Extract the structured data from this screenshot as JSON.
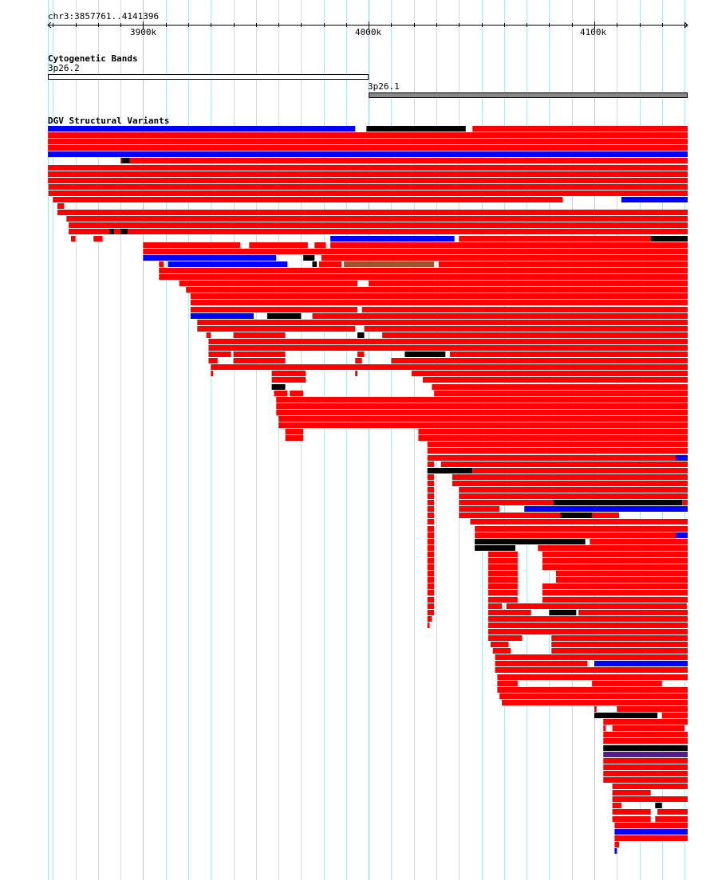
{
  "ruler": {
    "location": "chr3:3857761..4141396",
    "start_kb": 3857.761,
    "end_kb": 4141.396,
    "labels": [
      {
        "kb": 3900,
        "text": "3900k"
      },
      {
        "kb": 4000,
        "text": "4000k"
      },
      {
        "kb": 4100,
        "text": "4100k"
      }
    ]
  },
  "cytobands": {
    "title": "Cytogenetic Bands",
    "bands": [
      {
        "name": "3p26.2",
        "start": 3857.761,
        "end": 4000,
        "color": "#ffffff"
      },
      {
        "name": "3p26.1",
        "start": 4000,
        "end": 4141.396,
        "color": "#888888"
      }
    ]
  },
  "variants": {
    "title": "DGV Structural Variants",
    "colors": {
      "r": "#ff0000",
      "b": "#0000ff",
      "k": "#000000",
      "n": "#a0522d",
      "p": "#551a8b"
    },
    "rows": [
      [
        [
          3857.8,
          3994,
          "b"
        ],
        [
          3999,
          4043,
          "k"
        ],
        [
          4046,
          4142,
          "r"
        ]
      ],
      [
        [
          3857.8,
          4142,
          "r"
        ]
      ],
      [
        [
          3857.8,
          4142,
          "r"
        ]
      ],
      [
        [
          3857.8,
          4142,
          "r"
        ]
      ],
      [
        [
          3857.8,
          4142,
          "b"
        ]
      ],
      [
        [
          3890,
          4142,
          "r"
        ],
        [
          3890.5,
          3894,
          "k"
        ]
      ],
      [
        [
          3857.8,
          4142,
          "r"
        ]
      ],
      [
        [
          3857.8,
          4142,
          "r"
        ]
      ],
      [
        [
          3857.8,
          4142,
          "r"
        ]
      ],
      [
        [
          3858,
          4142,
          "r"
        ]
      ],
      [
        [
          3858,
          4142,
          "r"
        ]
      ],
      [
        [
          3860,
          4086,
          "r"
        ],
        [
          4112,
          4142,
          "b"
        ]
      ],
      [
        [
          3862,
          3865,
          "r"
        ]
      ],
      [
        [
          3862,
          4142,
          "r"
        ]
      ],
      [
        [
          3866,
          4142,
          "r"
        ]
      ],
      [
        [
          3867,
          4142,
          "r"
        ]
      ],
      [
        [
          3867,
          4142,
          "r"
        ],
        [
          3885,
          3887,
          "k"
        ],
        [
          3890,
          3893,
          "k"
        ]
      ],
      [
        [
          3868,
          3870,
          "r"
        ],
        [
          3878,
          3882,
          "r"
        ],
        [
          3983,
          4038,
          "b"
        ],
        [
          4040,
          4125,
          "r"
        ],
        [
          4125,
          4142,
          "k"
        ]
      ],
      [
        [
          3900,
          3943,
          "r"
        ],
        [
          3947,
          3973,
          "r"
        ],
        [
          3976,
          3981,
          "r"
        ],
        [
          3983,
          4142,
          "r"
        ]
      ],
      [
        [
          3900,
          4142,
          "r"
        ]
      ],
      [
        [
          3900,
          3959,
          "b"
        ],
        [
          3971,
          3976,
          "k"
        ],
        [
          3979,
          4142,
          "r"
        ]
      ],
      [
        [
          3907,
          3909,
          "r"
        ],
        [
          3911,
          3964,
          "b"
        ],
        [
          3975,
          3977,
          "k"
        ],
        [
          3978,
          3988,
          "r"
        ],
        [
          3989,
          4029,
          "n"
        ],
        [
          4031,
          4142,
          "r"
        ]
      ],
      [
        [
          3907,
          4142,
          "r"
        ]
      ],
      [
        [
          3907,
          4142,
          "r"
        ]
      ],
      [
        [
          3916,
          3995,
          "r"
        ],
        [
          4000,
          4142,
          "r"
        ]
      ],
      [
        [
          3919,
          4142,
          "r"
        ]
      ],
      [
        [
          3921,
          4142,
          "r"
        ]
      ],
      [
        [
          3921,
          4142,
          "r"
        ]
      ],
      [
        [
          3921,
          3995,
          "r"
        ],
        [
          3997,
          4142,
          "r"
        ]
      ],
      [
        [
          3921,
          3949,
          "b"
        ],
        [
          3955,
          3970,
          "k"
        ],
        [
          3975,
          4142,
          "r"
        ]
      ],
      [
        [
          3924,
          4142,
          "r"
        ]
      ],
      [
        [
          3924,
          3994,
          "r"
        ],
        [
          3998,
          4142,
          "r"
        ]
      ],
      [
        [
          3928,
          3930,
          "r"
        ],
        [
          3940,
          3963,
          "r"
        ],
        [
          3995,
          3998,
          "k"
        ],
        [
          4006,
          4142,
          "r"
        ]
      ],
      [
        [
          3929,
          4142,
          "r"
        ]
      ],
      [
        [
          3929,
          4142,
          "r"
        ]
      ],
      [
        [
          3929,
          3939,
          "r"
        ],
        [
          3940,
          3963,
          "r"
        ],
        [
          3995,
          3998,
          "r"
        ],
        [
          4016,
          4034,
          "k"
        ],
        [
          4036,
          4142,
          "r"
        ]
      ],
      [
        [
          3929,
          3933,
          "r"
        ],
        [
          3940,
          3963,
          "r"
        ],
        [
          3994,
          3997,
          "r"
        ],
        [
          4010,
          4142,
          "r"
        ]
      ],
      [
        [
          3930,
          4142,
          "r"
        ]
      ],
      [
        [
          3930,
          3931,
          "r"
        ],
        [
          3957,
          3972,
          "r"
        ],
        [
          3994,
          3995,
          "r"
        ],
        [
          4019,
          4142,
          "r"
        ]
      ],
      [
        [
          3957,
          3972,
          "r"
        ],
        [
          4024,
          4142,
          "r"
        ]
      ],
      [
        [
          3957,
          3963,
          "k"
        ],
        [
          4028,
          4142,
          "r"
        ]
      ],
      [
        [
          3958,
          3964,
          "r"
        ],
        [
          3965,
          3971,
          "r"
        ],
        [
          4029,
          4142,
          "r"
        ]
      ],
      [
        [
          3959,
          4142,
          "r"
        ]
      ],
      [
        [
          3959,
          4142,
          "r"
        ]
      ],
      [
        [
          3959,
          4142,
          "r"
        ]
      ],
      [
        [
          3960,
          4142,
          "r"
        ]
      ],
      [
        [
          3960,
          4142,
          "r"
        ]
      ],
      [
        [
          3963,
          3971,
          "r"
        ],
        [
          4022,
          4142,
          "r"
        ]
      ],
      [
        [
          3963,
          3971,
          "r"
        ],
        [
          4022,
          4142,
          "r"
        ]
      ],
      [
        [
          4026,
          4142,
          "r"
        ]
      ],
      [
        [
          4026,
          4142,
          "r"
        ]
      ],
      [
        [
          4026,
          4142,
          "r"
        ],
        [
          4136,
          4142,
          "b"
        ]
      ],
      [
        [
          4026,
          4029,
          "r"
        ],
        [
          4032,
          4142,
          "r"
        ]
      ],
      [
        [
          4026,
          4046,
          "k"
        ],
        [
          4046,
          4142,
          "r"
        ]
      ],
      [
        [
          4026,
          4029,
          "r"
        ],
        [
          4037,
          4142,
          "r"
        ]
      ],
      [
        [
          4026,
          4029,
          "r"
        ],
        [
          4037,
          4142,
          "r"
        ]
      ],
      [
        [
          4026,
          4029,
          "r"
        ],
        [
          4040,
          4142,
          "r"
        ]
      ],
      [
        [
          4026,
          4029,
          "r"
        ],
        [
          4040,
          4142,
          "r"
        ]
      ],
      [
        [
          4026,
          4029,
          "r"
        ],
        [
          4040,
          4082,
          "r"
        ],
        [
          4082,
          4139,
          "k"
        ],
        [
          4139,
          4142,
          "r"
        ]
      ],
      [
        [
          4026,
          4029,
          "r"
        ],
        [
          4040,
          4058,
          "r"
        ],
        [
          4069,
          4142,
          "b"
        ]
      ],
      [
        [
          4026,
          4029,
          "r"
        ],
        [
          4040,
          4111,
          "r"
        ],
        [
          4085,
          4099,
          "k"
        ]
      ],
      [
        [
          4026,
          4029,
          "r"
        ],
        [
          4045,
          4142,
          "r"
        ]
      ],
      [
        [
          4026,
          4029,
          "r"
        ],
        [
          4047,
          4142,
          "r"
        ]
      ],
      [
        [
          4026,
          4029,
          "r"
        ],
        [
          4047,
          4142,
          "r"
        ],
        [
          4136,
          4142,
          "b"
        ]
      ],
      [
        [
          4026,
          4029,
          "r"
        ],
        [
          4047,
          4096,
          "k"
        ],
        [
          4098,
          4142,
          "r"
        ]
      ],
      [
        [
          4026,
          4029,
          "r"
        ],
        [
          4047,
          4065,
          "k"
        ],
        [
          4075,
          4142,
          "r"
        ]
      ],
      [
        [
          4026,
          4029,
          "r"
        ],
        [
          4053,
          4066,
          "r"
        ],
        [
          4077,
          4142,
          "r"
        ]
      ],
      [
        [
          4026,
          4029,
          "r"
        ],
        [
          4053,
          4066,
          "r"
        ],
        [
          4077,
          4142,
          "r"
        ]
      ],
      [
        [
          4026,
          4029,
          "r"
        ],
        [
          4053,
          4066,
          "r"
        ],
        [
          4077,
          4142,
          "r"
        ]
      ],
      [
        [
          4026,
          4029,
          "r"
        ],
        [
          4053,
          4066,
          "r"
        ],
        [
          4083,
          4142,
          "r"
        ]
      ],
      [
        [
          4026,
          4029,
          "r"
        ],
        [
          4053,
          4066,
          "r"
        ],
        [
          4083,
          4142,
          "r"
        ]
      ],
      [
        [
          4026,
          4029,
          "r"
        ],
        [
          4053,
          4066,
          "r"
        ],
        [
          4077,
          4142,
          "r"
        ]
      ],
      [
        [
          4026,
          4029,
          "r"
        ],
        [
          4053,
          4066,
          "r"
        ],
        [
          4077,
          4142,
          "r"
        ]
      ],
      [
        [
          4026,
          4029,
          "r"
        ],
        [
          4053,
          4066,
          "r"
        ],
        [
          4077,
          4142,
          "r"
        ]
      ],
      [
        [
          4026,
          4029,
          "r"
        ],
        [
          4053,
          4059,
          "r"
        ],
        [
          4061,
          4141,
          "r"
        ]
      ],
      [
        [
          4026,
          4029,
          "r"
        ],
        [
          4053,
          4072,
          "r"
        ],
        [
          4080,
          4092,
          "k"
        ],
        [
          4093,
          4142,
          "r"
        ]
      ],
      [
        [
          4026,
          4028,
          "r"
        ],
        [
          4053,
          4142,
          "r"
        ]
      ],
      [
        [
          4026,
          4027,
          "r"
        ],
        [
          4053,
          4142,
          "r"
        ]
      ],
      [
        [
          4053,
          4142,
          "r"
        ]
      ],
      [
        [
          4053,
          4068,
          "r"
        ],
        [
          4081,
          4142,
          "r"
        ]
      ],
      [
        [
          4054,
          4062,
          "r"
        ],
        [
          4081,
          4142,
          "r"
        ]
      ],
      [
        [
          4055,
          4063,
          "r"
        ],
        [
          4081,
          4142,
          "r"
        ]
      ],
      [
        [
          4056,
          4142,
          "r"
        ]
      ],
      [
        [
          4056,
          4097,
          "r"
        ],
        [
          4100,
          4142,
          "b"
        ]
      ],
      [
        [
          4056,
          4142,
          "r"
        ]
      ],
      [
        [
          4057,
          4142,
          "r"
        ]
      ],
      [
        [
          4057,
          4066,
          "r"
        ],
        [
          4099,
          4130,
          "r"
        ]
      ],
      [
        [
          4057,
          4142,
          "r"
        ]
      ],
      [
        [
          4058,
          4142,
          "r"
        ]
      ],
      [
        [
          4059,
          4142,
          "r"
        ]
      ],
      [
        [
          4100,
          4101,
          "r"
        ],
        [
          4110,
          4142,
          "r"
        ]
      ],
      [
        [
          4100,
          4128,
          "k"
        ],
        [
          4130,
          4142,
          "r"
        ]
      ],
      [
        [
          4104,
          4142,
          "r"
        ]
      ],
      [
        [
          4104,
          4105,
          "r"
        ],
        [
          4108,
          4140,
          "r"
        ]
      ],
      [
        [
          4104,
          4142,
          "r"
        ]
      ],
      [
        [
          4104,
          4142,
          "r"
        ]
      ],
      [
        [
          4104,
          4142,
          "k"
        ]
      ],
      [
        [
          4104,
          4142,
          "p"
        ]
      ],
      [
        [
          4104,
          4142,
          "r"
        ]
      ],
      [
        [
          4104,
          4142,
          "r"
        ]
      ],
      [
        [
          4104,
          4142,
          "r"
        ]
      ],
      [
        [
          4104,
          4142,
          "r"
        ]
      ],
      [
        [
          4108,
          4142,
          "r"
        ]
      ],
      [
        [
          4108,
          4125,
          "r"
        ]
      ],
      [
        [
          4108,
          4142,
          "r"
        ]
      ],
      [
        [
          4108,
          4112,
          "r"
        ],
        [
          4127,
          4130,
          "k"
        ]
      ],
      [
        [
          4108,
          4125,
          "r"
        ],
        [
          4128,
          4142,
          "r"
        ]
      ],
      [
        [
          4108,
          4125,
          "r"
        ],
        [
          4127,
          4142,
          "r"
        ]
      ],
      [
        [
          4109,
          4142,
          "r"
        ]
      ],
      [
        [
          4109,
          4142,
          "b"
        ]
      ],
      [
        [
          4109,
          4142,
          "r"
        ]
      ],
      [
        [
          4109,
          4111,
          "r"
        ]
      ],
      [
        [
          4109,
          4110,
          "b"
        ]
      ]
    ]
  }
}
